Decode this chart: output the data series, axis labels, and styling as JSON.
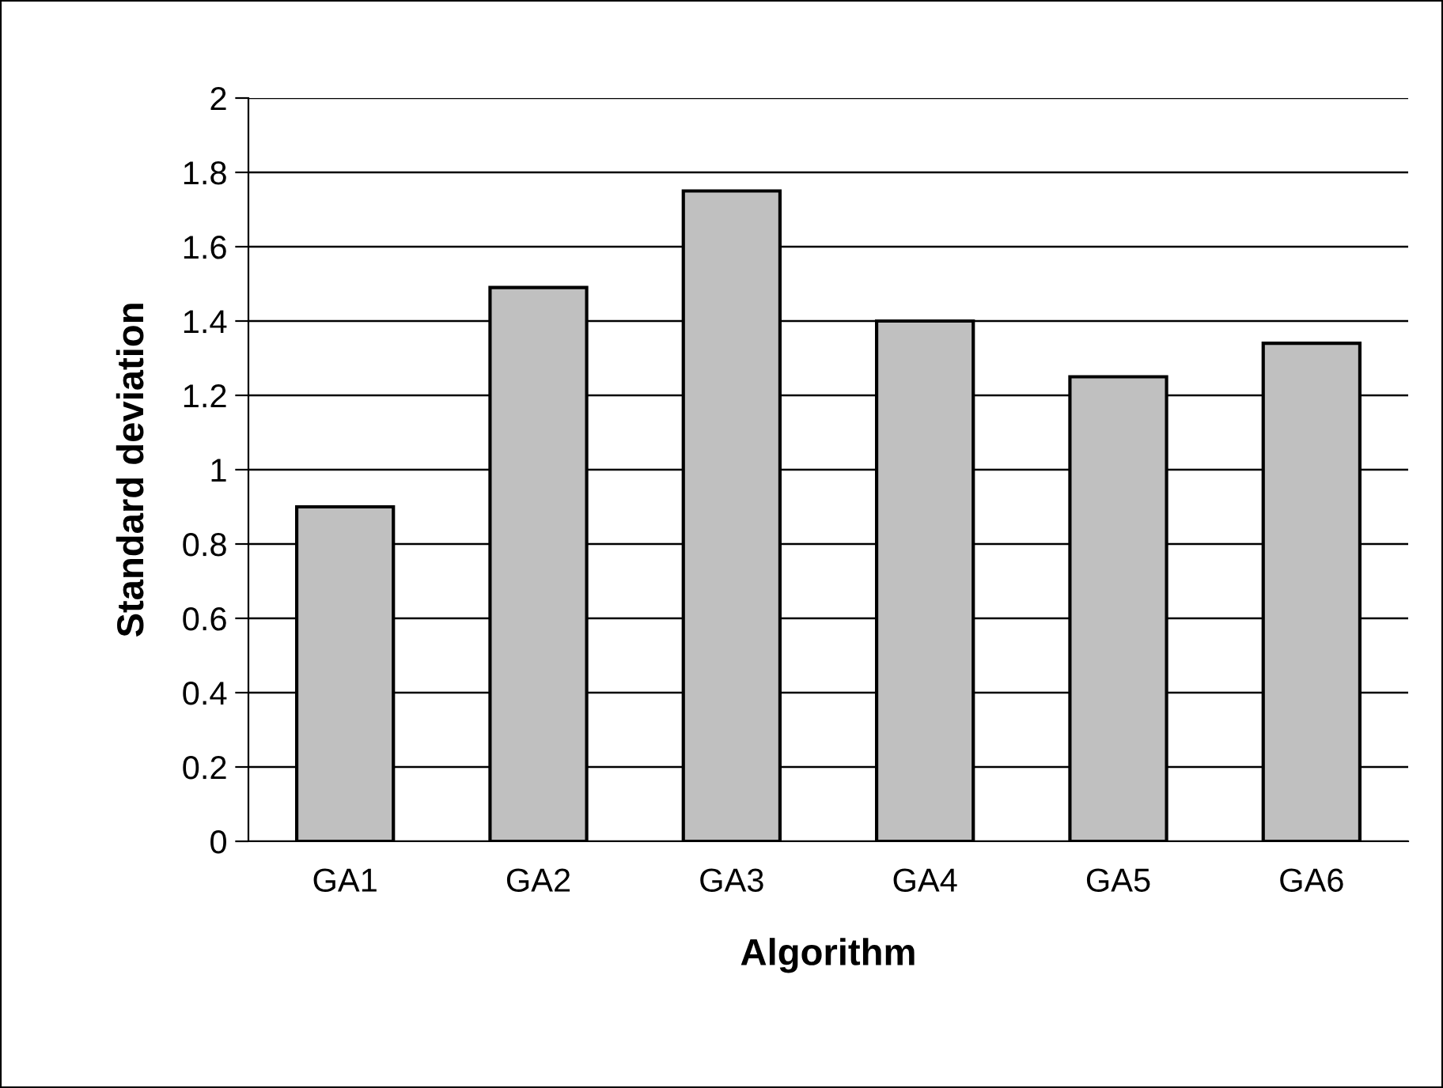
{
  "chart_data": {
    "type": "bar",
    "xlabel": "Algorithm",
    "ylabel": "Standard deviation",
    "categories": [
      "GA1",
      "GA2",
      "GA3",
      "GA4",
      "GA5",
      "GA6"
    ],
    "values": [
      0.9,
      1.49,
      1.75,
      1.4,
      1.25,
      1.34
    ],
    "color": "#c0c0c0",
    "ylim": [
      0,
      2
    ],
    "yticks": [
      0,
      0.2,
      0.4,
      0.6,
      0.8,
      1,
      1.2,
      1.4,
      1.6,
      1.8,
      2
    ],
    "grid": "y",
    "legend": false
  }
}
